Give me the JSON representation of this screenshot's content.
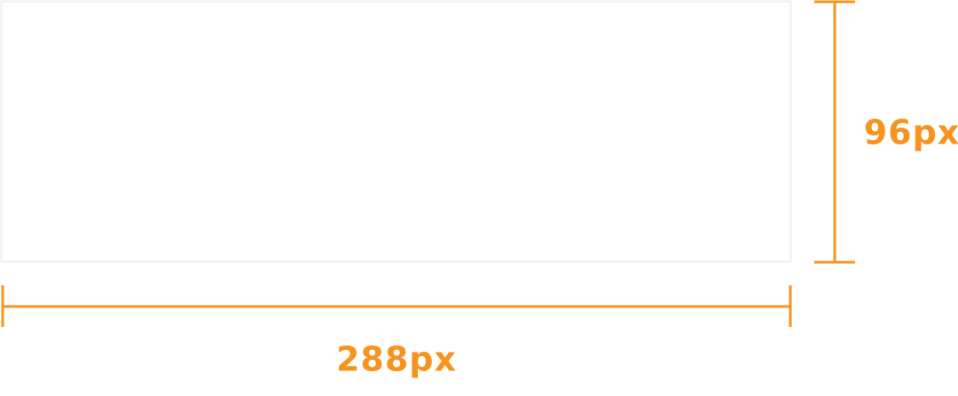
{
  "dimensions": {
    "height_label": "96px",
    "width_label": "288px"
  }
}
